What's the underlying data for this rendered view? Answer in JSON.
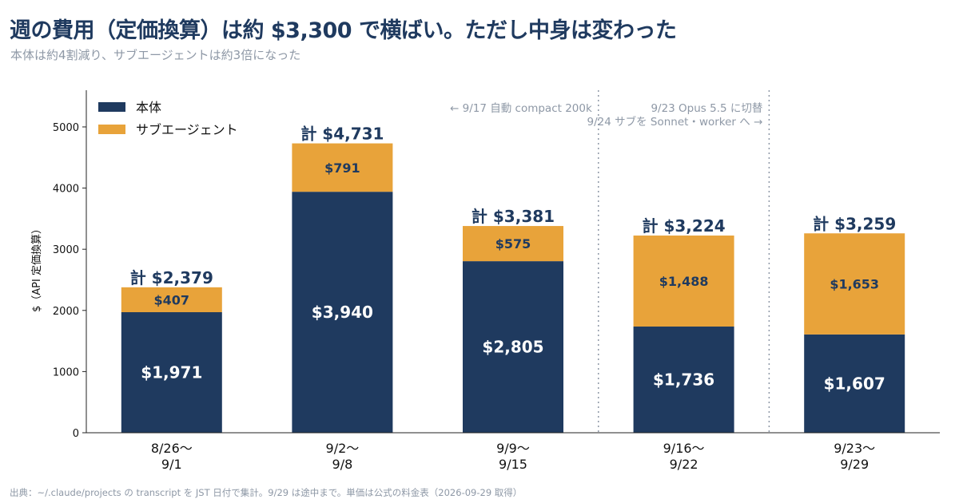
{
  "title": "週の費用（定価換算）は約 $3,300 で横ばい。ただし中身は変わった",
  "subtitle": "本体は約4割減り、サブエージェントは約3倍になった",
  "source": "出典：~/.claude/projects の transcript を JST 日付で集計。9/29 は途中まで。単価は公式の料金表（2026-09-29 取得）",
  "colors": {
    "main": "#1f3a5f",
    "sub": "#e8a33a",
    "muted": "#8e98a6"
  },
  "chart_data": {
    "type": "bar",
    "stacked": true,
    "categories": [
      [
        "8/26〜",
        "9/1"
      ],
      [
        "9/2〜",
        "9/8"
      ],
      [
        "9/9〜",
        "9/15"
      ],
      [
        "9/16〜",
        "9/22"
      ],
      [
        "9/23〜",
        "9/29"
      ]
    ],
    "series": [
      {
        "name": "本体",
        "values": [
          1971,
          3940,
          2805,
          1736,
          1607
        ],
        "labels": [
          "$1,971",
          "$3,940",
          "$2,805",
          "$1,736",
          "$1,607"
        ]
      },
      {
        "name": "サブエージェント",
        "values": [
          407,
          791,
          575,
          1488,
          1653
        ],
        "labels": [
          "$407",
          "$791",
          "$575",
          "$1,488",
          "$1,653"
        ]
      }
    ],
    "totals": [
      "計 $2,379",
      "計 $4,731",
      "計 $3,381",
      "計 $3,224",
      "計 $3,259"
    ],
    "ylabel": "$（API 定価換算）",
    "ylim": [
      0,
      5600
    ],
    "yticks": [
      "0",
      "1000",
      "2000",
      "3000",
      "4000",
      "5000"
    ],
    "legend": "top-left",
    "annotations": [
      {
        "text": "← 9/17 自動 compact 200k",
        "after_category": 2
      },
      {
        "text": "9/23 Opus 5.5 に切替",
        "after_category": 3
      },
      {
        "text": "9/24 サブを Sonnet・worker へ →",
        "after_category": 3
      }
    ]
  }
}
